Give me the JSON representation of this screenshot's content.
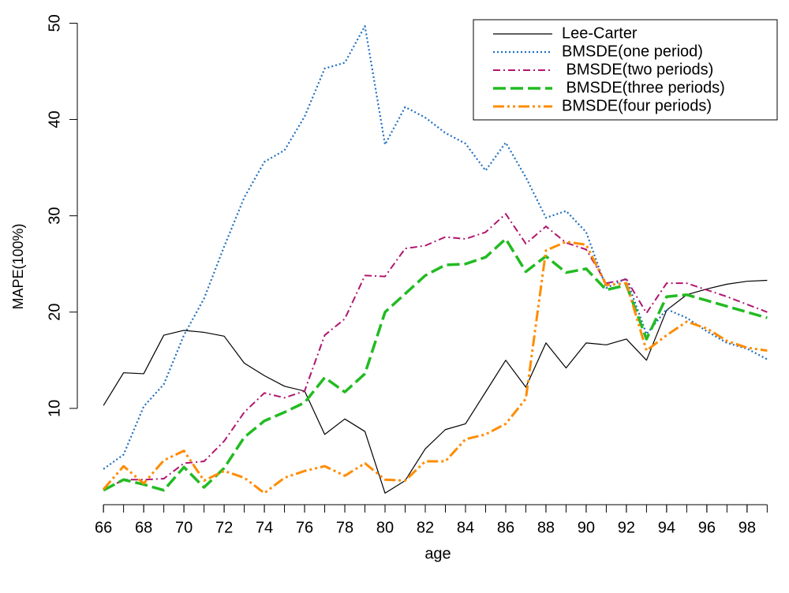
{
  "chart_data": {
    "type": "line",
    "x_label": "age",
    "y_label": "MAPE(100%)",
    "x": [
      66,
      67,
      68,
      69,
      70,
      71,
      72,
      73,
      74,
      75,
      76,
      77,
      78,
      79,
      80,
      81,
      82,
      83,
      84,
      85,
      86,
      87,
      88,
      89,
      90,
      91,
      92,
      93,
      94,
      95,
      96,
      97,
      98,
      99
    ],
    "xlim": [
      64.7,
      99.3
    ],
    "xticks": [
      66,
      68,
      70,
      72,
      74,
      76,
      78,
      80,
      82,
      84,
      86,
      88,
      90,
      92,
      94,
      96,
      98
    ],
    "ylim": [
      0,
      52
    ],
    "yticks": [
      10,
      20,
      30,
      40,
      50
    ],
    "legend": "top-right",
    "series": [
      {
        "name": "Lee-Carter",
        "color": "#000000",
        "dash": "solid",
        "values": [
          10.3,
          13.7,
          13.6,
          17.6,
          18.1,
          17.9,
          17.5,
          14.7,
          13.4,
          12.3,
          11.8,
          7.3,
          8.9,
          7.6,
          1.2,
          2.5,
          5.8,
          7.8,
          8.4,
          11.7,
          15.0,
          12.2,
          16.8,
          14.2,
          16.8,
          16.6,
          17.2,
          15.0,
          20.2,
          21.8,
          22.4,
          22.9,
          23.2,
          23.3
        ]
      },
      {
        "name": "BMSDE(one period)",
        "color": "#1f6fbf",
        "dash": "dotted",
        "values": [
          3.7,
          5.2,
          10.2,
          12.5,
          17.6,
          21.4,
          26.8,
          31.9,
          35.6,
          36.8,
          40.3,
          45.3,
          45.9,
          49.7,
          37.4,
          41.3,
          40.2,
          38.6,
          37.5,
          34.7,
          37.6,
          34.0,
          29.8,
          30.5,
          28.3,
          22.5,
          23.5,
          17.7,
          20.3,
          19.4,
          18.0,
          16.8,
          16.2,
          15.1
        ]
      },
      {
        "name": " BMSDE(two periods)",
        "color": "#b0166e",
        "dash": "dashdot",
        "values": [
          1.5,
          2.6,
          2.6,
          2.7,
          4.3,
          4.5,
          6.6,
          9.6,
          11.6,
          11.1,
          11.8,
          17.6,
          19.3,
          23.8,
          23.7,
          26.6,
          26.9,
          27.8,
          27.6,
          28.3,
          30.2,
          27.1,
          28.9,
          27.2,
          26.5,
          23.0,
          23.4,
          19.9,
          23.0,
          23.0,
          22.3,
          21.6,
          20.8,
          20.0
        ]
      },
      {
        "name": " BMSDE(three periods)",
        "color": "#22bb22",
        "dash": "longdash",
        "values": [
          1.5,
          2.6,
          2.1,
          1.5,
          3.9,
          1.8,
          3.8,
          7.0,
          8.7,
          9.6,
          10.6,
          13.2,
          11.7,
          13.6,
          20.0,
          21.9,
          23.8,
          24.9,
          25.0,
          25.7,
          27.6,
          24.2,
          25.8,
          24.1,
          24.5,
          22.3,
          22.8,
          17.2,
          21.6,
          21.8,
          21.2,
          20.6,
          20.0,
          19.4
        ]
      },
      {
        "name": "BMSDE(four periods)",
        "color": "#ff8c00",
        "dash": "twodash",
        "values": [
          1.6,
          4.0,
          2.2,
          4.6,
          5.6,
          2.5,
          3.5,
          2.8,
          1.2,
          2.8,
          3.5,
          4.0,
          3.0,
          4.3,
          2.6,
          2.5,
          4.5,
          4.5,
          6.8,
          7.3,
          8.4,
          11.0,
          26.4,
          27.3,
          27.0,
          22.8,
          23.0,
          16.0,
          17.6,
          19.0,
          18.3,
          17.0,
          16.3,
          16.0
        ]
      }
    ]
  }
}
